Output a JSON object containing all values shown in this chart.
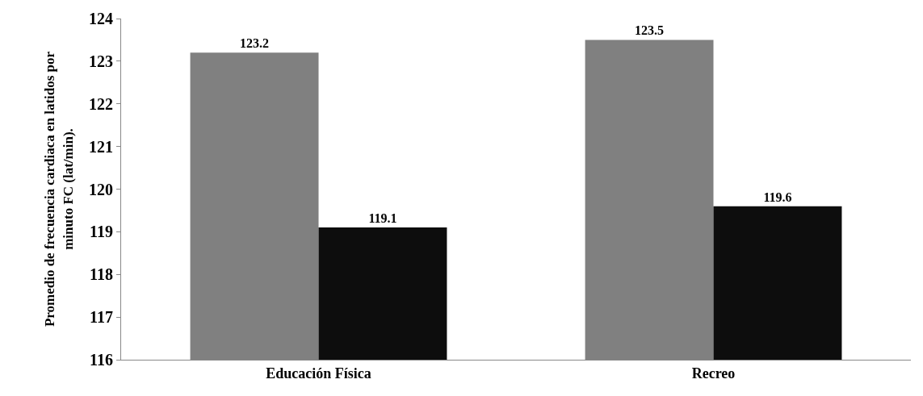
{
  "chart_data": {
    "type": "bar",
    "ylabel": "Promedio de frecuencia cardiaca en latidos por minuto FC (lat/min).",
    "categories": [
      "Educación Física",
      "Recreo"
    ],
    "series": [
      {
        "color": "#808080",
        "values": [
          123.2,
          123.5
        ]
      },
      {
        "color": "#0d0d0d",
        "values": [
          119.1,
          119.6
        ]
      }
    ],
    "ylim": [
      116,
      124
    ],
    "yticks": [
      116,
      117,
      118,
      119,
      120,
      121,
      122,
      123,
      124
    ],
    "data_labels": true
  }
}
